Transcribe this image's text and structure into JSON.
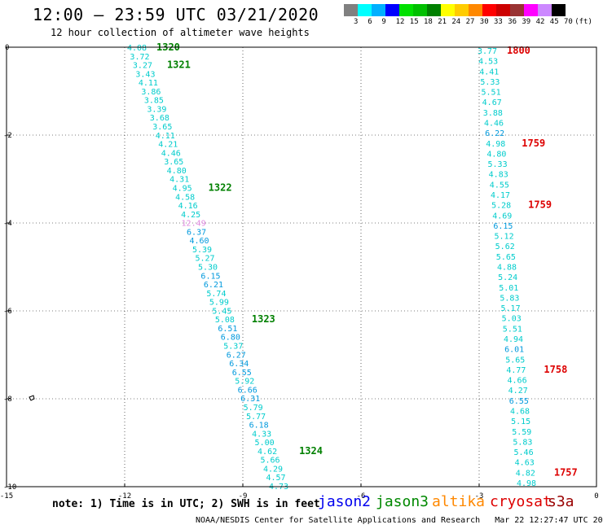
{
  "header": {
    "title": "12:00 – 23:59 UTC 03/21/2020",
    "subtitle": "12 hour collection of altimeter wave heights"
  },
  "colorbar": {
    "colors": [
      "#808080",
      "#00ffff",
      "#00b0ff",
      "#0000ff",
      "#00e000",
      "#00c000",
      "#008000",
      "#ffff00",
      "#ffcc00",
      "#ff8800",
      "#ff0000",
      "#cc0000",
      "#993333",
      "#ff00ff",
      "#cc88ff",
      "#000000"
    ],
    "labels": [
      "3",
      "6",
      "9",
      "12",
      "15",
      "18",
      "21",
      "24",
      "27",
      "30",
      "33",
      "36",
      "39",
      "42",
      "45",
      "70",
      "(ft)"
    ]
  },
  "axes": {
    "x_ticks": [
      "-15",
      "-12",
      "-9",
      "-6",
      "-3",
      "0"
    ],
    "y_ticks": [
      "0",
      "-2",
      "-4",
      "-6",
      "-8",
      "-10"
    ]
  },
  "tracks": [
    {
      "name": "left-pass",
      "values": [
        "4.08",
        "3.72",
        "3.27",
        "3.43",
        "4.11",
        "3.86",
        "3.85",
        "3.39",
        "3.68",
        "3.65",
        "4.11",
        "4.21",
        "4.46",
        "3.65",
        "4.80",
        "4.31",
        "4.95",
        "4.58",
        "4.16",
        "4.25",
        "12.49",
        "6.37",
        "4.60",
        "5.39",
        "5.27",
        "5.30",
        "6.15",
        "6.21",
        "5.74",
        "5.99",
        "5.45",
        "5.08",
        "6.51",
        "6.80",
        "5.37",
        "6.27",
        "6.34",
        "6.55",
        "5.92",
        "6.66",
        "6.31",
        "5.79",
        "5.77",
        "6.18",
        "4.33",
        "5.00",
        "4.62",
        "5.66",
        "4.29",
        "4.57",
        "4.73"
      ],
      "colors": [
        "#00cccc",
        "#00cccc",
        "#00cccc",
        "#00cccc",
        "#00cccc",
        "#00cccc",
        "#00cccc",
        "#00cccc",
        "#00cccc",
        "#00cccc",
        "#00cccc",
        "#00cccc",
        "#00cccc",
        "#00cccc",
        "#00cccc",
        "#00cccc",
        "#00cccc",
        "#00cccc",
        "#00cccc",
        "#00cccc",
        "#e08ae0",
        "#0099dd",
        "#0099dd",
        "#00cccc",
        "#00cccc",
        "#00cccc",
        "#0099dd",
        "#0099dd",
        "#00cccc",
        "#00cccc",
        "#00cccc",
        "#00cccc",
        "#0099dd",
        "#0099dd",
        "#00cccc",
        "#0099dd",
        "#0099dd",
        "#0099dd",
        "#00cccc",
        "#0099dd",
        "#0099dd",
        "#00cccc",
        "#00cccc",
        "#0099dd",
        "#00cccc",
        "#00cccc",
        "#00cccc",
        "#00cccc",
        "#00cccc",
        "#00cccc",
        "#00cccc"
      ],
      "time_labels": [
        {
          "text": "1320",
          "color": "#008000"
        },
        {
          "text": "1321",
          "color": "#008000"
        },
        {
          "text": "1322",
          "color": "#008000"
        },
        {
          "text": "1323",
          "color": "#008000"
        },
        {
          "text": "1324",
          "color": "#008000"
        }
      ]
    },
    {
      "name": "right-pass",
      "values": [
        "3.77",
        "4.53",
        "4.41",
        "5.33",
        "5.51",
        "4.67",
        "3.88",
        "4.46",
        "6.22",
        "4.98",
        "4.80",
        "5.33",
        "4.83",
        "4.55",
        "4.17",
        "5.28",
        "4.69",
        "6.15",
        "5.12",
        "5.62",
        "5.65",
        "4.88",
        "5.24",
        "5.01",
        "5.83",
        "5.17",
        "5.03",
        "5.51",
        "4.94",
        "6.01",
        "5.65",
        "4.77",
        "4.66",
        "4.27",
        "6.55",
        "4.68",
        "5.15",
        "5.59",
        "5.83",
        "5.46",
        "4.63",
        "4.82",
        "4.98"
      ],
      "colors": [
        "#00cccc",
        "#00cccc",
        "#00cccc",
        "#00cccc",
        "#00cccc",
        "#00cccc",
        "#00cccc",
        "#00cccc",
        "#0099dd",
        "#00cccc",
        "#00cccc",
        "#00cccc",
        "#00cccc",
        "#00cccc",
        "#00cccc",
        "#00cccc",
        "#00cccc",
        "#0099dd",
        "#00cccc",
        "#00cccc",
        "#00cccc",
        "#00cccc",
        "#00cccc",
        "#00cccc",
        "#00cccc",
        "#00cccc",
        "#00cccc",
        "#00cccc",
        "#00cccc",
        "#0099dd",
        "#00cccc",
        "#00cccc",
        "#00cccc",
        "#00cccc",
        "#0099dd",
        "#00cccc",
        "#00cccc",
        "#00cccc",
        "#00cccc",
        "#00cccc",
        "#00cccc",
        "#00cccc",
        "#00cccc"
      ],
      "time_labels": [
        {
          "text": "1800",
          "color": "#dd0000"
        },
        {
          "text": "1759",
          "color": "#dd0000"
        },
        {
          "text": "1759",
          "color": "#dd0000"
        },
        {
          "text": "1758",
          "color": "#dd0000"
        },
        {
          "text": "1757",
          "color": "#dd0000"
        }
      ]
    }
  ],
  "note": "note: 1) Time is in UTC; 2) SWH is in feet",
  "legend": [
    {
      "label": "jason2",
      "color": "#0000ee"
    },
    {
      "label": "jason3",
      "color": "#008800"
    },
    {
      "label": "altika",
      "color": "#ff8800"
    },
    {
      "label": "cryosat",
      "color": "#dd0000"
    },
    {
      "label": "s3a",
      "color": "#990000"
    }
  ],
  "footer": {
    "credit": "NOAA/NESDIS Center for Satellite Applications and Research",
    "timestamp": "Mar 22 12:27:47 UTC 2020"
  }
}
